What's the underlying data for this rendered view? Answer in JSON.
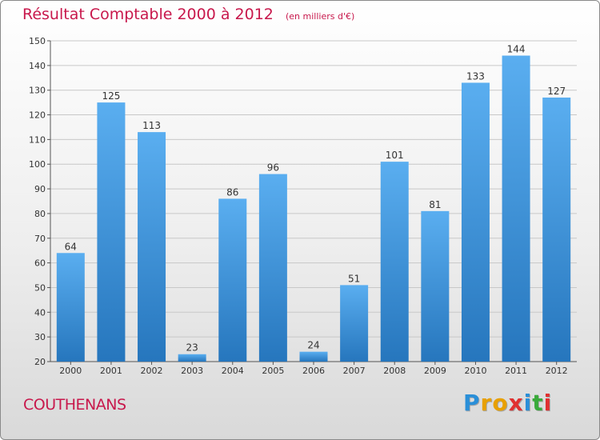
{
  "chart_data": {
    "type": "bar",
    "title": "Résultat Comptable 2000 à 2012",
    "subtitle": "(en milliers d'€)",
    "categories": [
      "2000",
      "2001",
      "2002",
      "2003",
      "2004",
      "2005",
      "2006",
      "2007",
      "2008",
      "2009",
      "2010",
      "2011",
      "2012"
    ],
    "values": [
      64,
      125,
      113,
      23,
      86,
      96,
      24,
      51,
      101,
      81,
      133,
      144,
      127
    ],
    "ylim": [
      20,
      150
    ],
    "yticks": [
      20,
      30,
      40,
      50,
      60,
      70,
      80,
      90,
      100,
      110,
      120,
      130,
      140,
      150
    ],
    "grid": true,
    "bar_color": "#3a8fd8"
  },
  "commune": "COUTHENANS",
  "logo": {
    "letters": [
      "P",
      "r",
      "o",
      "x",
      "i",
      "t",
      "i"
    ],
    "colors": [
      "#2a8fd8",
      "#e8a000",
      "#e8a000",
      "#e03030",
      "#2a8fd8",
      "#3aaa3a",
      "#e03030"
    ]
  }
}
